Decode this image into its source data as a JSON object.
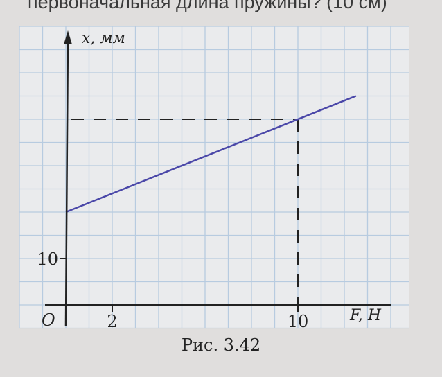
{
  "header_text": "первоначальная длина пружины? (10 см)",
  "caption": "Рис. 3.42",
  "chart_data": {
    "type": "line",
    "title": "",
    "xlabel": "F, H",
    "ylabel": "x, мм",
    "origin_label": "O",
    "xlim": [
      -2,
      14
    ],
    "ylim": [
      -5,
      60
    ],
    "x_ticks": [
      {
        "value": 2,
        "label": "2"
      },
      {
        "value": 10,
        "label": "10"
      }
    ],
    "y_ticks": [
      {
        "value": 10,
        "label": "10"
      }
    ],
    "grid": true,
    "grid_step": {
      "x": 1,
      "y": 5
    },
    "series": [
      {
        "x": [
          0,
          12.5
        ],
        "y": [
          20,
          45
        ],
        "color": "#4a47a8"
      }
    ],
    "guides": {
      "x": 10,
      "y": 40,
      "style": "dashed"
    },
    "colors": {
      "grid": "#b7cbe0",
      "axes": "#222222",
      "paper": "#eaebed"
    }
  }
}
